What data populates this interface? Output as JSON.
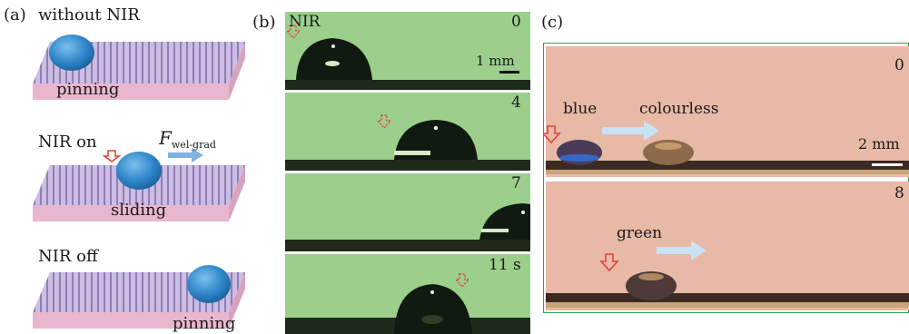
{
  "panel_a": {
    "label": "(a)",
    "title": "without NIR",
    "stage1_label": "pinning",
    "stage2_title": "NIR on",
    "force_symbol": "F",
    "force_subscript": "wel-grad",
    "stage2_label": "sliding",
    "stage3_title": "NIR off",
    "stage3_label": "pinning"
  },
  "panel_b": {
    "label": "(b)",
    "nir": "NIR",
    "scale": "1 mm",
    "frames": [
      "0",
      "4",
      "7",
      "11 s"
    ]
  },
  "panel_c": {
    "label": "(c)",
    "frame1_time": "0",
    "frame2_time": "8",
    "scale": "2 mm",
    "blue": "blue",
    "colourless": "colourless",
    "green": "green"
  },
  "colors": {
    "substrate_top": "#c9b8e0",
    "substrate_side": "#e7b7cf",
    "droplet": "#2f86c8",
    "arrow_red": "#e0443a",
    "arrow_blue": "#7fb2de",
    "video_green": "#9ccf8b",
    "photo_pink": "#e7b9a6",
    "frame_border": "#2aa84a"
  }
}
